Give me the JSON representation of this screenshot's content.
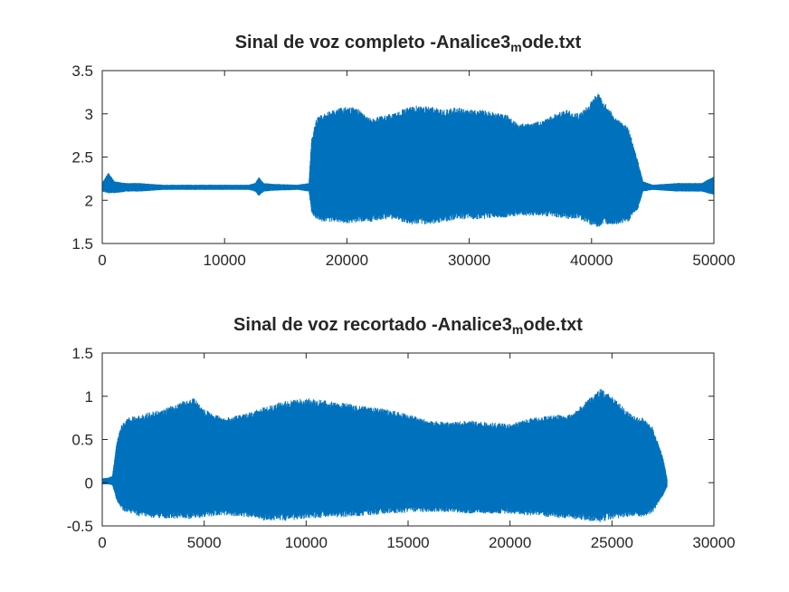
{
  "chart_data": [
    {
      "type": "line",
      "title_main": "Sinal de voz completo -Analice3",
      "title_sub": "m",
      "title_tail": "ode.txt",
      "xlim": [
        0,
        50000
      ],
      "ylim": [
        1.5,
        3.5
      ],
      "x_ticks": [
        "0",
        "10000",
        "20000",
        "30000",
        "40000",
        "50000"
      ],
      "y_ticks": [
        "1.5",
        "2",
        "2.5",
        "3",
        "3.5"
      ],
      "x_tick_values": [
        0,
        10000,
        20000,
        30000,
        40000,
        50000
      ],
      "y_tick_values": [
        1.5,
        2,
        2.5,
        3,
        3.5
      ],
      "grid": false,
      "line_color": "#0072BD",
      "series": [
        {
          "x": [
            0,
            500,
            1000,
            2000,
            3000,
            5000,
            8000,
            10000,
            12000,
            12500,
            12800,
            13200,
            14000,
            16000,
            16900,
            17100,
            17500,
            18000,
            19000,
            20000,
            21000,
            22000,
            23000,
            24000,
            25000,
            26000,
            27000,
            28000,
            29000,
            30000,
            31000,
            32000,
            33000,
            34000,
            35000,
            36000,
            37000,
            38000,
            39000,
            40000,
            40500,
            41000,
            42000,
            43000,
            43800,
            44200,
            45000,
            47000,
            49000,
            50000
          ],
          "y_upper": [
            2.2,
            2.32,
            2.22,
            2.2,
            2.2,
            2.18,
            2.18,
            2.18,
            2.18,
            2.2,
            2.27,
            2.2,
            2.19,
            2.18,
            2.2,
            2.7,
            2.95,
            3.0,
            3.05,
            3.1,
            3.05,
            2.95,
            2.98,
            3.02,
            3.08,
            3.1,
            3.08,
            3.05,
            3.08,
            3.05,
            3.05,
            3.02,
            3.0,
            2.88,
            2.9,
            2.92,
            3.0,
            3.05,
            3.0,
            3.15,
            3.25,
            3.15,
            2.95,
            2.85,
            2.45,
            2.22,
            2.18,
            2.2,
            2.2,
            2.28
          ],
          "y_lower": [
            2.1,
            2.08,
            2.08,
            2.1,
            2.1,
            2.12,
            2.12,
            2.12,
            2.12,
            2.1,
            2.05,
            2.1,
            2.11,
            2.12,
            2.1,
            1.85,
            1.78,
            1.75,
            1.75,
            1.72,
            1.75,
            1.75,
            1.78,
            1.78,
            1.72,
            1.72,
            1.72,
            1.75,
            1.78,
            1.78,
            1.78,
            1.8,
            1.8,
            1.82,
            1.82,
            1.82,
            1.8,
            1.78,
            1.78,
            1.7,
            1.68,
            1.72,
            1.72,
            1.75,
            1.9,
            2.1,
            2.12,
            2.1,
            2.1,
            2.06
          ]
        }
      ]
    },
    {
      "type": "line",
      "title_main": "Sinal de voz recortado -Analice3",
      "title_sub": "m",
      "title_tail": "ode.txt",
      "xlim": [
        0,
        30000
      ],
      "ylim": [
        -0.5,
        1.5
      ],
      "x_ticks": [
        "0",
        "5000",
        "10000",
        "15000",
        "20000",
        "25000",
        "30000"
      ],
      "y_ticks": [
        "-0.5",
        "0",
        "0.5",
        "1",
        "1.5"
      ],
      "x_tick_values": [
        0,
        5000,
        10000,
        15000,
        20000,
        25000,
        30000
      ],
      "y_tick_values": [
        -0.5,
        0,
        0.5,
        1,
        1.5
      ],
      "grid": false,
      "line_color": "#0072BD",
      "series": [
        {
          "x": [
            0,
            300,
            500,
            700,
            900,
            1200,
            2000,
            3000,
            4000,
            4500,
            5000,
            6000,
            7000,
            8000,
            9000,
            10000,
            11000,
            12000,
            13000,
            14000,
            15000,
            16000,
            17000,
            18000,
            19000,
            20000,
            21000,
            22000,
            23000,
            24000,
            24500,
            25000,
            26000,
            26500,
            27000,
            27500,
            27700
          ],
          "y_upper": [
            0.05,
            0.06,
            0.08,
            0.45,
            0.65,
            0.75,
            0.8,
            0.85,
            0.95,
            0.98,
            0.85,
            0.75,
            0.8,
            0.88,
            0.95,
            0.98,
            0.95,
            0.92,
            0.88,
            0.85,
            0.8,
            0.72,
            0.7,
            0.72,
            0.7,
            0.68,
            0.75,
            0.78,
            0.8,
            1.0,
            1.1,
            1.0,
            0.78,
            0.75,
            0.65,
            0.3,
            0.05
          ],
          "y_lower": [
            -0.02,
            -0.02,
            -0.03,
            -0.2,
            -0.3,
            -0.35,
            -0.4,
            -0.42,
            -0.42,
            -0.42,
            -0.4,
            -0.38,
            -0.4,
            -0.44,
            -0.44,
            -0.42,
            -0.4,
            -0.4,
            -0.38,
            -0.36,
            -0.35,
            -0.34,
            -0.34,
            -0.36,
            -0.36,
            -0.36,
            -0.38,
            -0.4,
            -0.42,
            -0.45,
            -0.46,
            -0.42,
            -0.4,
            -0.4,
            -0.35,
            -0.15,
            -0.05
          ]
        }
      ]
    }
  ]
}
